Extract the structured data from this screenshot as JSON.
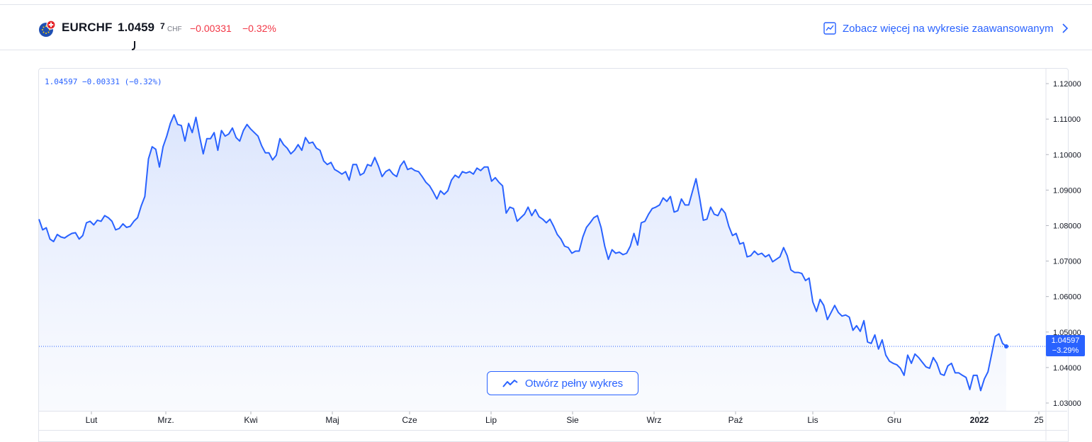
{
  "header": {
    "symbol": "EURCHF",
    "price_main": "1.0459",
    "price_last_digit": "7",
    "currency": "CHF",
    "change": "−0.00331",
    "change_pct": "−0.32%",
    "advanced_link_label": "Zobacz więcej na wykresie zaawansowanym",
    "icons": [
      "eu-ch-flag-icon",
      "chart-line-icon",
      "chevron-right-icon"
    ]
  },
  "legend_text": "1.04597 −0.00331 (−0.32%)",
  "price_tag": {
    "price": "1.04597",
    "change_pct": "−3.29%"
  },
  "open_button_label": "Otwórz pełny wykres",
  "colors": {
    "line": "#2962ff",
    "negative": "#f23645",
    "area_top": "#dbe5fd"
  },
  "chart_data": {
    "type": "area",
    "series": [
      {
        "values": [
          1.0818,
          1.0788,
          1.0794,
          1.0762,
          1.0755,
          1.0775,
          1.0768,
          1.0765,
          1.0772,
          1.0778,
          1.078,
          1.0762,
          1.0772,
          1.0808,
          1.0812,
          1.0802,
          1.0815,
          1.0812,
          1.0828,
          1.0822,
          1.0812,
          1.0788,
          1.0792,
          1.0805,
          1.0795,
          1.0798,
          1.0812,
          1.0822,
          1.0855,
          1.0882,
          1.0988,
          1.1022,
          1.1015,
          1.0965,
          1.1022,
          1.1052,
          1.1088,
          1.1112,
          1.1085,
          1.1082,
          1.1038,
          1.1088,
          1.1062,
          1.1105,
          1.1052,
          1.1002,
          1.1045,
          1.1045,
          1.1062,
          1.1012,
          1.1068,
          1.1052,
          1.1058,
          1.1075,
          1.1048,
          1.1038,
          1.1068,
          1.1085,
          1.1072,
          1.1062,
          1.1052,
          1.1025,
          1.1005,
          1.1005,
          1.0985,
          1.0998,
          1.1045,
          1.1028,
          1.1018,
          1.1002,
          1.1012,
          1.1028,
          1.1012,
          1.1048,
          1.1032,
          1.1035,
          1.1018,
          1.1012,
          1.0982,
          1.0972,
          1.0978,
          1.0958,
          1.0952,
          1.0945,
          1.0952,
          1.0928,
          1.0972,
          1.0972,
          1.0942,
          1.0948,
          1.0972,
          1.0968,
          1.0992,
          1.0968,
          1.0938,
          1.0952,
          1.0958,
          1.0945,
          1.0938,
          1.0968,
          1.0982,
          1.0958,
          1.0962,
          1.0955,
          1.0952,
          1.0938,
          1.0922,
          1.0912,
          1.0895,
          1.0875,
          1.0898,
          1.0888,
          1.0898,
          1.0928,
          1.0942,
          1.0935,
          1.0952,
          1.0948,
          1.0952,
          1.0945,
          1.0962,
          1.0955,
          1.0965,
          1.0965,
          1.0925,
          1.0935,
          1.0922,
          1.0912,
          1.0835,
          1.0852,
          1.0848,
          1.0812,
          1.0822,
          1.0832,
          1.0852,
          1.0828,
          1.0845,
          1.0825,
          1.0818,
          1.0808,
          1.0818,
          1.0798,
          1.0775,
          1.0762,
          1.0742,
          1.0738,
          1.0722,
          1.0728,
          1.0728,
          1.0768,
          1.0795,
          1.0808,
          1.0822,
          1.0828,
          1.0795,
          1.0742,
          1.0705,
          1.0732,
          1.0722,
          1.0725,
          1.0718,
          1.0722,
          1.0742,
          1.0778,
          1.0745,
          1.0808,
          1.0812,
          1.0832,
          1.0848,
          1.0852,
          1.0858,
          1.0878,
          1.0868,
          1.0882,
          1.0838,
          1.0842,
          1.0875,
          1.0858,
          1.0858,
          1.0895,
          1.0932,
          1.0878,
          1.0815,
          1.0818,
          1.0852,
          1.0832,
          1.0828,
          1.0848,
          1.0835,
          1.0798,
          1.0772,
          1.0778,
          1.0748,
          1.0752,
          1.0712,
          1.0715,
          1.0728,
          1.0718,
          1.0722,
          1.0712,
          1.0718,
          1.0698,
          1.0705,
          1.0712,
          1.0738,
          1.0715,
          1.0675,
          1.0668,
          1.0668,
          1.0665,
          1.0645,
          1.0652,
          1.0585,
          1.0558,
          1.0592,
          1.0575,
          1.0535,
          1.0555,
          1.0575,
          1.0555,
          1.0545,
          1.0548,
          1.0542,
          1.0505,
          1.0518,
          1.0502,
          1.0532,
          1.0472,
          1.0468,
          1.0492,
          1.0452,
          1.0478,
          1.0435,
          1.0418,
          1.0412,
          1.0408,
          1.0398,
          1.0378,
          1.0435,
          1.0412,
          1.0438,
          1.0428,
          1.0415,
          1.0402,
          1.0398,
          1.0428,
          1.0412,
          1.0382,
          1.0378,
          1.0405,
          1.0412,
          1.0385,
          1.0385,
          1.0378,
          1.0372,
          1.0338,
          1.0378,
          1.0378,
          1.0335,
          1.0368,
          1.0388,
          1.0438,
          1.0488,
          1.0495,
          1.0468,
          1.04597
        ]
      }
    ],
    "x_ticks": [
      "Lut",
      "Mrz.",
      "Kwi",
      "Maj",
      "Cze",
      "Lip",
      "Sie",
      "Wrz",
      "Paź",
      "Lis",
      "Gru",
      "2022",
      "25"
    ],
    "y_ticks": [
      "1.12000",
      "1.11000",
      "1.10000",
      "1.09000",
      "1.08000",
      "1.07000",
      "1.06000",
      "1.05000",
      "1.04000",
      "1.03000"
    ],
    "ylim": [
      1.028,
      1.124
    ],
    "last_value": 1.04597,
    "grid": false,
    "scale_side": "right"
  }
}
